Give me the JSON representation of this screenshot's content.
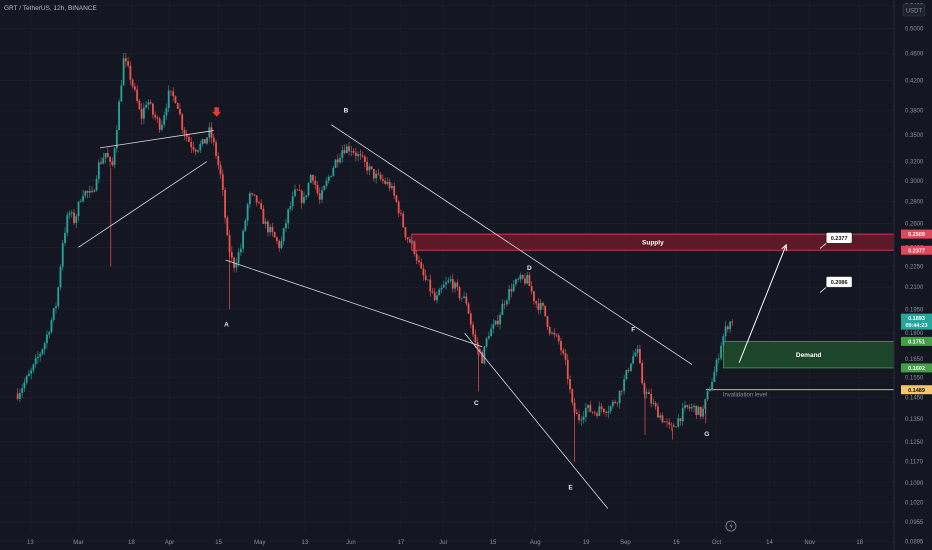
{
  "header": {
    "symbol_line": "GRT / TetherUS, 12h, BINANCE",
    "currency": "USDT"
  },
  "colors": {
    "background": "#141722",
    "grid": "#1c2030",
    "up": "#26a69a",
    "down": "#ef5350",
    "supply_fill": "#6b1a2a",
    "supply_border": "#e0485a",
    "demand_fill": "#1e4a2a",
    "demand_border": "#43a047",
    "invalidation": "#f5c76a",
    "trendline": "#d8dbe2",
    "arrow_marker": "#e53935"
  },
  "chart_data": {
    "type": "candlestick",
    "title": "",
    "xlabel": "",
    "ylabel": "",
    "ylim": [
      0.087,
      0.55
    ],
    "y_scale": "log",
    "y_ticks": [
      "0.5400",
      "0.5000",
      "0.4600",
      "0.4200",
      "0.3800",
      "0.3500",
      "0.3200",
      "0.3000",
      "0.2800",
      "0.2600",
      "0.2400",
      "0.2250",
      "0.2100",
      "0.1950",
      "0.1800",
      "0.1650",
      "0.1550",
      "0.1450",
      "0.1350",
      "0.1250",
      "0.1170",
      "0.1090",
      "0.1020",
      "0.0955",
      "0.0895"
    ],
    "x_ticks": [
      {
        "label": "13",
        "t": 13
      },
      {
        "label": "Mar",
        "t": 62
      },
      {
        "label": "18",
        "t": 116
      },
      {
        "label": "Apr",
        "t": 155
      },
      {
        "label": "15",
        "t": 205
      },
      {
        "label": "May",
        "t": 247
      },
      {
        "label": "13",
        "t": 293
      },
      {
        "label": "Jun",
        "t": 340
      },
      {
        "label": "17",
        "t": 391
      },
      {
        "label": "Jul",
        "t": 434
      },
      {
        "label": "15",
        "t": 485
      },
      {
        "label": "Aug",
        "t": 528
      },
      {
        "label": "19",
        "t": 580
      },
      {
        "label": "Sep",
        "t": 620
      },
      {
        "label": "16",
        "t": 672
      },
      {
        "label": "Oct",
        "t": 713
      },
      {
        "label": "14",
        "t": 767
      },
      {
        "label": "Nov",
        "t": 808
      },
      {
        "label": "18",
        "t": 859
      }
    ],
    "t_range": [
      -18,
      894
    ],
    "path": [
      [
        0,
        0.147
      ],
      [
        14,
        0.158
      ],
      [
        28,
        0.175
      ],
      [
        40,
        0.2
      ],
      [
        46,
        0.245
      ],
      [
        52,
        0.27
      ],
      [
        58,
        0.262
      ],
      [
        66,
        0.29
      ],
      [
        76,
        0.285
      ],
      [
        82,
        0.315
      ],
      [
        90,
        0.33
      ],
      [
        96,
        0.31
      ],
      [
        102,
        0.37
      ],
      [
        108,
        0.45
      ],
      [
        114,
        0.43
      ],
      [
        120,
        0.4
      ],
      [
        126,
        0.37
      ],
      [
        132,
        0.395
      ],
      [
        138,
        0.375
      ],
      [
        146,
        0.36
      ],
      [
        154,
        0.4
      ],
      [
        162,
        0.395
      ],
      [
        168,
        0.36
      ],
      [
        176,
        0.34
      ],
      [
        182,
        0.335
      ],
      [
        190,
        0.34
      ],
      [
        196,
        0.355
      ],
      [
        202,
        0.33
      ],
      [
        208,
        0.3
      ],
      [
        214,
        0.245
      ],
      [
        220,
        0.225
      ],
      [
        228,
        0.24
      ],
      [
        236,
        0.285
      ],
      [
        244,
        0.28
      ],
      [
        252,
        0.26
      ],
      [
        260,
        0.25
      ],
      [
        268,
        0.24
      ],
      [
        276,
        0.27
      ],
      [
        284,
        0.29
      ],
      [
        292,
        0.28
      ],
      [
        300,
        0.31
      ],
      [
        308,
        0.28
      ],
      [
        316,
        0.3
      ],
      [
        324,
        0.32
      ],
      [
        332,
        0.335
      ],
      [
        340,
        0.335
      ],
      [
        348,
        0.325
      ],
      [
        356,
        0.315
      ],
      [
        364,
        0.305
      ],
      [
        372,
        0.3
      ],
      [
        380,
        0.295
      ],
      [
        388,
        0.275
      ],
      [
        396,
        0.25
      ],
      [
        404,
        0.24
      ],
      [
        412,
        0.22
      ],
      [
        420,
        0.21
      ],
      [
        426,
        0.2
      ],
      [
        434,
        0.21
      ],
      [
        442,
        0.215
      ],
      [
        450,
        0.205
      ],
      [
        458,
        0.2
      ],
      [
        466,
        0.175
      ],
      [
        474,
        0.165
      ],
      [
        480,
        0.18
      ],
      [
        488,
        0.185
      ],
      [
        496,
        0.2
      ],
      [
        504,
        0.21
      ],
      [
        512,
        0.215
      ],
      [
        520,
        0.215
      ],
      [
        528,
        0.2
      ],
      [
        536,
        0.195
      ],
      [
        544,
        0.18
      ],
      [
        552,
        0.175
      ],
      [
        560,
        0.16
      ],
      [
        566,
        0.14
      ],
      [
        572,
        0.135
      ],
      [
        580,
        0.14
      ],
      [
        588,
        0.138
      ],
      [
        596,
        0.14
      ],
      [
        604,
        0.14
      ],
      [
        612,
        0.145
      ],
      [
        620,
        0.155
      ],
      [
        626,
        0.165
      ],
      [
        632,
        0.17
      ],
      [
        638,
        0.15
      ],
      [
        644,
        0.145
      ],
      [
        650,
        0.14
      ],
      [
        658,
        0.135
      ],
      [
        666,
        0.13
      ],
      [
        674,
        0.135
      ],
      [
        682,
        0.14
      ],
      [
        690,
        0.14
      ],
      [
        698,
        0.137
      ],
      [
        706,
        0.15
      ],
      [
        712,
        0.16
      ],
      [
        718,
        0.175
      ],
      [
        724,
        0.185
      ],
      [
        730,
        0.189
      ]
    ],
    "spikes": [
      {
        "t": 95,
        "low": 0.225
      },
      {
        "t": 216,
        "low": 0.195
      },
      {
        "t": 470,
        "low": 0.148
      },
      {
        "t": 568,
        "low": 0.117
      },
      {
        "t": 640,
        "low": 0.128
      },
      {
        "t": 668,
        "low": 0.126
      },
      {
        "t": 702,
        "low": 0.133
      }
    ],
    "trendlines": [
      {
        "from": [
          84,
          0.335
        ],
        "to": [
          200,
          0.355
        ]
      },
      {
        "from": [
          62,
          0.24
        ],
        "to": [
          193,
          0.32
        ]
      },
      {
        "from": [
          212,
          0.23
        ],
        "to": [
          474,
          0.172
        ]
      },
      {
        "from": [
          320,
          0.362
        ],
        "to": [
          688,
          0.162
        ]
      },
      {
        "from": [
          456,
          0.18
        ],
        "to": [
          602,
          0.1
        ]
      }
    ],
    "supply_zone": {
      "label": "Supply",
      "t_start": 402,
      "t_end": 894,
      "top": 0.2509,
      "bottom": 0.2377
    },
    "demand_zone": {
      "label": "Demand",
      "t_start": 720,
      "t_end": 894,
      "top": 0.1751,
      "bottom": 0.1602
    },
    "invalidation": {
      "label": "Invalidation level",
      "value": 0.1489,
      "t_start": 702,
      "t_end": 894
    },
    "projection_arrow": {
      "from": [
        736,
        0.163
      ],
      "to": [
        784,
        0.242
      ]
    },
    "wave_labels": [
      {
        "text": "A",
        "t": 213,
        "price": 0.184
      },
      {
        "text": "B",
        "t": 335,
        "price": 0.377
      },
      {
        "text": "C",
        "t": 468,
        "price": 0.1415
      },
      {
        "text": "D",
        "t": 522,
        "price": 0.2225
      },
      {
        "text": "E",
        "t": 564,
        "price": 0.1065
      },
      {
        "text": "F",
        "t": 628,
        "price": 0.181
      },
      {
        "text": "G",
        "t": 703,
        "price": 0.1275
      }
    ],
    "price_badges": [
      {
        "label": "0.2377",
        "t": 838,
        "price": 0.2477
      },
      {
        "label": "0.2086",
        "t": 838,
        "price": 0.2137
      }
    ],
    "axis_badges": [
      {
        "label": "0.2509",
        "price": 0.2509,
        "color": "#e0485a"
      },
      {
        "label": "0.2377",
        "price": 0.2377,
        "color": "#e0485a"
      },
      {
        "label": "0.1893",
        "sub": "09:44:23",
        "price": 0.1893,
        "color": "#26a69a"
      },
      {
        "label": "0.1751",
        "price": 0.1751,
        "color": "#43a047"
      },
      {
        "label": "0.1602",
        "price": 0.1602,
        "color": "#43a047"
      },
      {
        "label": "0.1489",
        "price": 0.1489,
        "color": "#f5c76a"
      }
    ],
    "marker_arrow": {
      "t": 203,
      "price": 0.375
    },
    "grid": true
  }
}
